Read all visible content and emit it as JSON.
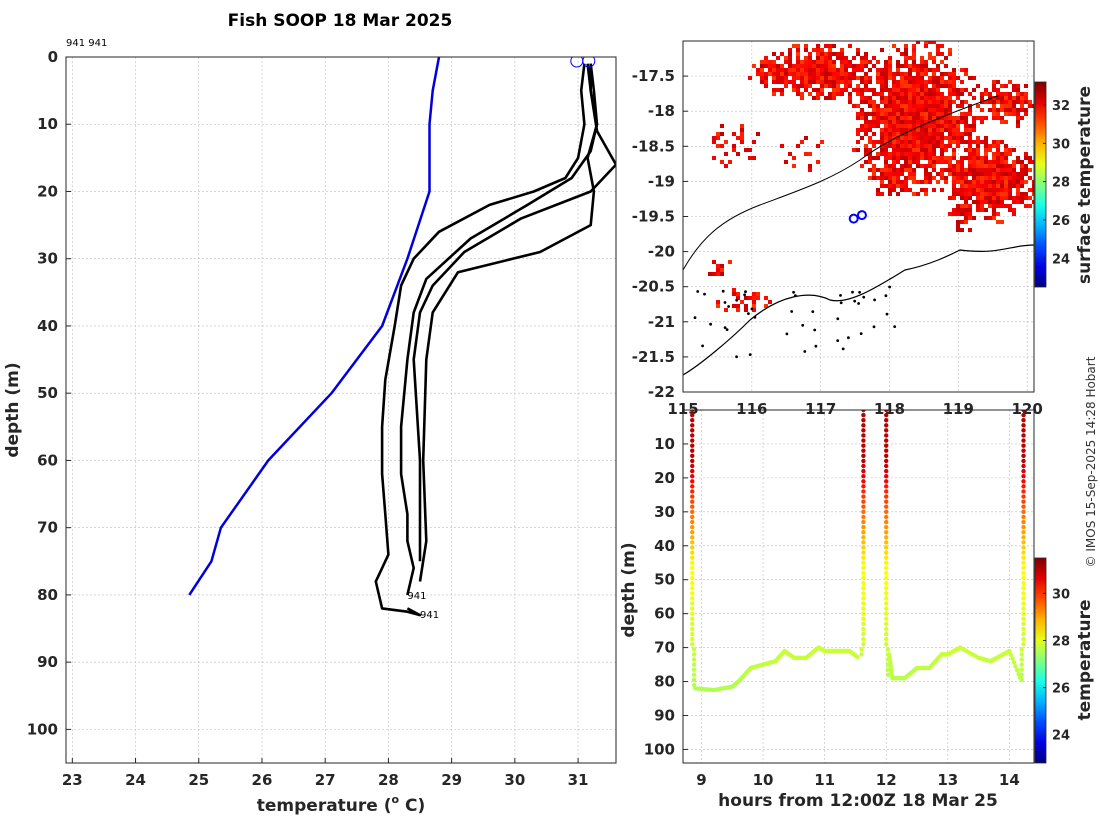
{
  "title": "Fish SOOP 18 Mar 2025",
  "profile_ids": "941 941",
  "credit": "© IMOS 15-Sep-2025 14:28 Hobart",
  "colors": {
    "clim": "#0000dd",
    "profile": "#000000",
    "marker": "#0000ff",
    "grid": "#bdbdbd"
  },
  "chart_data": [
    {
      "type": "line",
      "name": "temperature-profiles",
      "xlabel": "temperature (",
      "xlabel_sup": "o",
      "xlabel_unit": " C)",
      "ylabel": "depth (m)",
      "xlim": [
        22.9,
        31.6
      ],
      "ylim": [
        0,
        105
      ],
      "xticks": [
        "23",
        "24",
        "25",
        "26",
        "27",
        "28",
        "29",
        "30",
        "31"
      ],
      "yticks": [
        "0",
        "10",
        "20",
        "30",
        "40",
        "50",
        "60",
        "70",
        "80",
        "90",
        "100"
      ],
      "profile_labels": [
        {
          "text": "941",
          "temp": 28.3,
          "depth": 80.6
        },
        {
          "text": "941",
          "temp": 28.5,
          "depth": 83.4
        }
      ],
      "series": [
        {
          "name": "climatology",
          "temp": [
            28.8,
            28.7,
            28.65,
            28.65,
            28.3,
            27.9,
            27.1,
            26.1,
            25.35,
            25.2,
            24.85
          ],
          "depth": [
            0,
            5,
            10,
            20,
            30,
            40,
            50,
            60,
            70,
            75,
            80
          ]
        },
        {
          "name": "profile-1",
          "temp": [
            31.1,
            31.05,
            31.1,
            31.0,
            30.8,
            30.3,
            29.6,
            28.8,
            28.4,
            28.2,
            28.1,
            27.95,
            27.9,
            27.9,
            27.95,
            28.0,
            27.8,
            27.9,
            28.3,
            28.5,
            28.3
          ],
          "depth": [
            1,
            5,
            10,
            15,
            18,
            20,
            22,
            26,
            30,
            34,
            40,
            48,
            55,
            62,
            68,
            74,
            78,
            82,
            82.5,
            83,
            82
          ]
        },
        {
          "name": "profile-2",
          "temp": [
            31.2,
            31.2,
            31.3,
            31.2,
            30.9,
            30.2,
            29.3,
            28.6,
            28.4,
            28.3,
            28.2,
            28.2,
            28.3,
            28.3,
            28.4,
            28.3
          ],
          "depth": [
            1,
            5,
            10,
            14,
            18,
            22,
            27,
            33,
            38,
            45,
            55,
            62,
            68,
            72,
            76,
            80
          ]
        },
        {
          "name": "profile-3",
          "temp": [
            31.15,
            31.2,
            31.3,
            31.6,
            31.2,
            30.1,
            29.2,
            28.7,
            28.5,
            28.4,
            28.5,
            28.5
          ],
          "depth": [
            1,
            5,
            11,
            16,
            20,
            24,
            29,
            34,
            38,
            45,
            60,
            75
          ]
        },
        {
          "name": "profile-4",
          "temp": [
            31.2,
            31.25,
            31.3,
            31.15,
            31.25,
            31.2,
            30.4,
            29.1,
            28.7,
            28.6,
            28.55,
            28.6,
            28.5
          ],
          "depth": [
            1,
            5,
            10,
            15,
            20,
            25,
            29,
            32,
            38,
            45,
            60,
            72,
            78
          ]
        }
      ],
      "surface_markers": [
        {
          "temp": 30.98,
          "depth": 0.3
        },
        {
          "temp": 31.17,
          "depth": 0.3
        }
      ]
    },
    {
      "type": "heatmap",
      "name": "surface-temperature-map",
      "xlim": [
        115,
        120.1
      ],
      "ylim": [
        -22,
        -17
      ],
      "xticks": [
        "115",
        "116",
        "117",
        "118",
        "119",
        "120"
      ],
      "yticks": [
        "-17.5",
        "-18",
        "-18.5",
        "-19",
        "-19.5",
        "-20",
        "-20.5",
        "-21",
        "-21.5",
        "-22"
      ],
      "colorbar_label": "surface temperature",
      "colorbar_ticks": [
        "24",
        "26",
        "28",
        "30",
        "32"
      ],
      "colorbar_range": [
        22.5,
        33.2
      ],
      "track": [
        {
          "lon": 117.48,
          "lat": -19.53
        },
        {
          "lon": 117.6,
          "lat": -19.48
        }
      ]
    },
    {
      "type": "scatter",
      "name": "depth-time-section",
      "xlabel": "hours from 12:00Z 18 Mar 25",
      "ylabel": "depth (m)",
      "xlim": [
        8.7,
        14.4
      ],
      "ylim": [
        0,
        104
      ],
      "xticks": [
        "9",
        "10",
        "11",
        "12",
        "13",
        "14"
      ],
      "yticks": [
        "10",
        "20",
        "30",
        "40",
        "50",
        "60",
        "70",
        "80",
        "90",
        "100"
      ],
      "colorbar_label": "temperature",
      "colorbar_ticks": [
        "24",
        "26",
        "28",
        "30"
      ],
      "colorbar_range": [
        22.8,
        31.5
      ],
      "descents": [
        {
          "t": 8.85,
          "dir": "down"
        },
        {
          "t": 11.63,
          "dir": "up"
        },
        {
          "t": 12.0,
          "dir": "down"
        },
        {
          "t": 14.23,
          "dir": "up"
        }
      ],
      "floor_hours": [
        8.9,
        9.2,
        9.5,
        9.6,
        9.8,
        10.0,
        10.2,
        10.35,
        10.5,
        10.7,
        10.9,
        11.0,
        11.2,
        11.4,
        11.55,
        12.05,
        12.1,
        12.3,
        12.5,
        12.7,
        12.9,
        13.0,
        13.2,
        13.5,
        13.7,
        13.8,
        14.0,
        14.2
      ],
      "floor_depths": [
        82,
        82.5,
        81.5,
        80,
        76,
        75,
        74,
        71,
        73,
        73,
        70,
        71,
        71,
        71,
        73,
        72,
        79,
        79,
        76,
        76,
        72,
        72,
        70,
        73,
        74,
        73,
        71,
        80
      ]
    }
  ]
}
